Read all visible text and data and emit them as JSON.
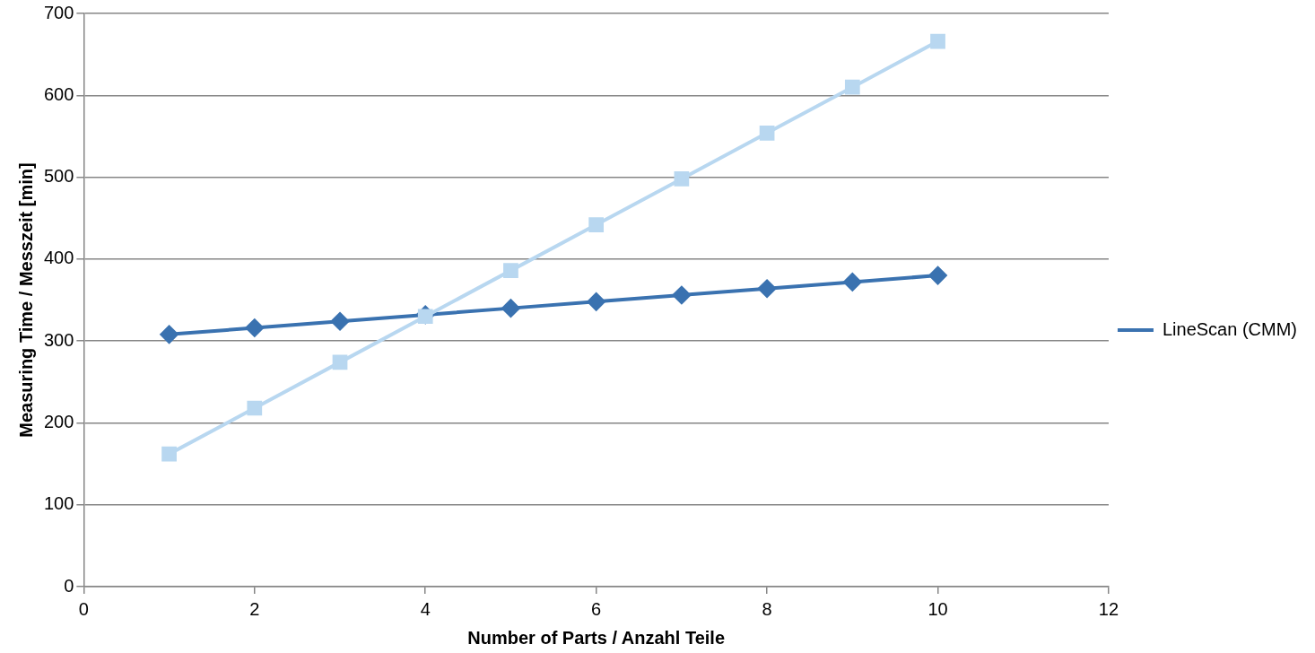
{
  "chart_data": {
    "type": "line",
    "xlabel": "Number of Parts / Anzahl Teile",
    "ylabel": "Measuring Time / Messzeit [min]",
    "x": [
      1,
      2,
      3,
      4,
      5,
      6,
      7,
      8,
      9,
      10
    ],
    "series": [
      {
        "name": "LineScan (CMM)",
        "color": "#3a72b0",
        "marker": "diamond",
        "values": [
          308,
          316,
          324,
          332,
          340,
          348,
          356,
          364,
          372,
          380
        ]
      },
      {
        "color": "#b8d7f0",
        "marker": "square",
        "values": [
          162,
          218,
          274,
          330,
          386,
          442,
          498,
          554,
          610,
          666
        ]
      }
    ],
    "xlim": [
      0,
      12
    ],
    "xticks": [
      0,
      2,
      4,
      6,
      8,
      10,
      12
    ],
    "ylim": [
      0,
      700
    ],
    "yticks": [
      0,
      100,
      200,
      300,
      400,
      500,
      600,
      700
    ],
    "grid": "y",
    "legend": "right",
    "line_style": "solid"
  }
}
